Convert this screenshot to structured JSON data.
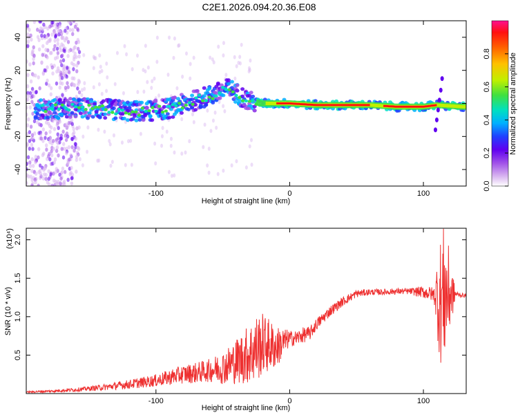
{
  "title": "C2E1.2026.094.20.36.E08",
  "chart_data": [
    {
      "type": "heatmap",
      "name": "spectrogram",
      "xlabel": "Height of straight line (km)",
      "ylabel": "Frequency (Hz)",
      "xlim": [
        -197,
        132
      ],
      "ylim": [
        -50,
        50
      ],
      "xticks": [
        -100,
        0,
        100
      ],
      "yticks": [
        -40,
        -20,
        0,
        20,
        40
      ],
      "ridge": {
        "x": [
          -190,
          -170,
          -150,
          -130,
          -110,
          -90,
          -70,
          -55,
          -45,
          -30,
          -20,
          -10,
          0,
          20,
          40,
          60,
          80,
          100,
          110,
          130
        ],
        "y": [
          -4,
          -3,
          -3,
          -4,
          -5,
          -3,
          2,
          6,
          9,
          1,
          0,
          0,
          0,
          -1,
          -1,
          -1,
          -2,
          -2,
          -1,
          -2
        ]
      },
      "colorbar": {
        "label": "Normalized spectral amplitude",
        "ticks": [
          0.0,
          0.2,
          0.4,
          0.6,
          0.8
        ],
        "range": [
          0,
          1
        ],
        "colors": [
          "#ffffff",
          "#d8b4f0",
          "#a050e8",
          "#6000f0",
          "#2040ff",
          "#00b0ff",
          "#00e0c0",
          "#40e040",
          "#c0f000",
          "#ffc000",
          "#ff6000",
          "#ff1010",
          "#ff1090"
        ]
      }
    },
    {
      "type": "line",
      "name": "snr",
      "xlabel": "Height of straight line (km)",
      "ylabel": "SNR (10 * v/v)",
      "scale_label": "(x10⁴)",
      "xlim": [
        -197,
        132
      ],
      "ylim": [
        0,
        2.15
      ],
      "xticks": [
        -100,
        0,
        100
      ],
      "yticks": [
        0.5,
        1.0,
        1.5,
        2.0
      ],
      "series": [
        {
          "name": "SNR",
          "color": "#ee3030",
          "x": [
            -197,
            -180,
            -160,
            -140,
            -120,
            -100,
            -90,
            -80,
            -70,
            -60,
            -50,
            -40,
            -30,
            -20,
            -10,
            0,
            5,
            10,
            15,
            20,
            30,
            40,
            50,
            60,
            70,
            80,
            90,
            100,
            105,
            110,
            113,
            115,
            118,
            120,
            125,
            132
          ],
          "y": [
            0.02,
            0.03,
            0.05,
            0.08,
            0.12,
            0.17,
            0.21,
            0.25,
            0.27,
            0.3,
            0.34,
            0.42,
            0.52,
            0.65,
            0.6,
            0.72,
            0.72,
            0.76,
            0.78,
            0.9,
            1.07,
            1.2,
            1.3,
            1.32,
            1.32,
            1.33,
            1.33,
            1.32,
            1.3,
            1.28,
            1.2,
            1.3,
            1.3,
            1.3,
            1.29,
            1.27
          ]
        }
      ],
      "noise_amplitude": {
        "x": [
          -197,
          -150,
          -100,
          -80,
          -60,
          -45,
          -35,
          -25,
          -15,
          -5,
          0,
          10,
          20,
          40,
          60,
          90,
          100,
          108,
          112,
          116,
          120,
          124,
          132
        ],
        "y": [
          0.01,
          0.03,
          0.08,
          0.12,
          0.15,
          0.25,
          0.35,
          0.45,
          0.35,
          0.2,
          0.1,
          0.1,
          0.08,
          0.06,
          0.04,
          0.04,
          0.08,
          0.1,
          0.8,
          0.9,
          0.5,
          0.04,
          0.02
        ]
      }
    }
  ]
}
